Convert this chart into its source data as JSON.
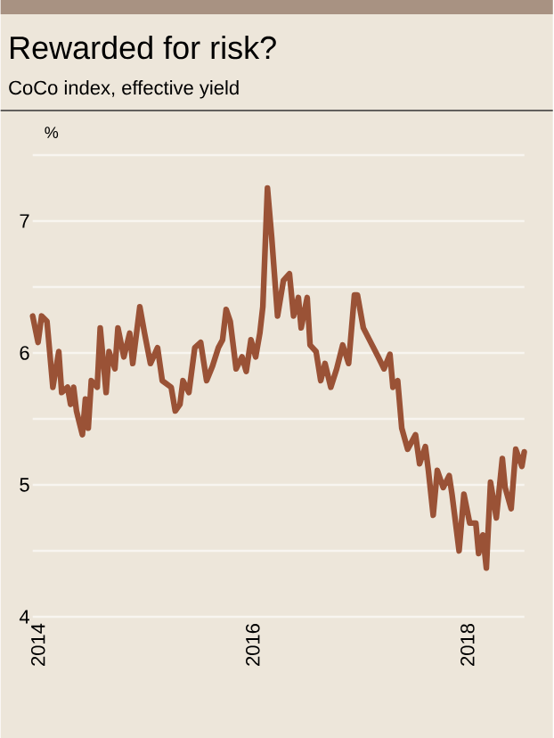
{
  "chart_data": {
    "type": "line",
    "title": "Rewarded for risk?",
    "subtitle": "CoCo index, effective yield",
    "ylabel": "%",
    "xlim": [
      2013.95,
      2018.53
    ],
    "xticks": [
      2014,
      2016,
      2018
    ],
    "ylim": [
      4,
      7.5
    ],
    "yticks": [
      4,
      {
        "value": 4.5,
        "label": null
      },
      5,
      {
        "value": 5.5,
        "label": null
      },
      6,
      {
        "value": 6.5,
        "label": null
      },
      7,
      {
        "value": 7.5,
        "label": null
      }
    ],
    "grid": "y",
    "series": [
      {
        "color": "#9a5236",
        "x": [
          2013.95,
          2014.0,
          2014.033,
          2014.083,
          2014.138,
          2014.193,
          2014.22,
          2014.275,
          2014.303,
          2014.331,
          2014.358,
          2014.413,
          2014.441,
          2014.468,
          2014.496,
          2014.551,
          2014.579,
          2014.634,
          2014.661,
          2014.716,
          2014.744,
          2014.799,
          2014.854,
          2014.882,
          2014.948,
          2014.992,
          2015.047,
          2015.113,
          2015.157,
          2015.24,
          2015.278,
          2015.322,
          2015.35,
          2015.405,
          2015.46,
          2015.515,
          2015.57,
          2015.625,
          2015.68,
          2015.719,
          2015.752,
          2015.79,
          2015.845,
          2015.9,
          2015.939,
          2015.983,
          2016.027,
          2016.066,
          2016.094,
          2016.137,
          2016.177,
          2016.231,
          2016.286,
          2016.342,
          2016.38,
          2016.425,
          2016.451,
          2016.507,
          2016.534,
          2016.59,
          2016.633,
          2016.673,
          2016.727,
          2016.782,
          2016.838,
          2016.893,
          2016.947,
          2016.975,
          2017.03,
          2017.112,
          2017.169,
          2017.223,
          2017.278,
          2017.306,
          2017.35,
          2017.388,
          2017.443,
          2017.516,
          2017.554,
          2017.608,
          2017.636,
          2017.681,
          2017.719,
          2017.774,
          2017.83,
          2017.856,
          2017.922,
          2017.967,
          2018.021,
          2018.078,
          2018.104,
          2018.143,
          2018.176,
          2018.215,
          2018.269,
          2018.325,
          2018.351,
          2018.407,
          2018.45,
          2018.507,
          2018.529
        ],
        "values": [
          6.28,
          6.08,
          6.28,
          6.24,
          5.74,
          6.01,
          5.7,
          5.74,
          5.61,
          5.74,
          5.56,
          5.38,
          5.65,
          5.43,
          5.79,
          5.74,
          6.19,
          5.7,
          6.01,
          5.88,
          6.19,
          5.97,
          6.15,
          5.92,
          6.35,
          6.15,
          5.92,
          6.04,
          5.79,
          5.74,
          5.56,
          5.61,
          5.79,
          5.7,
          6.04,
          6.08,
          5.79,
          5.9,
          6.04,
          6.1,
          6.33,
          6.24,
          5.88,
          5.97,
          5.86,
          6.1,
          5.97,
          6.15,
          6.35,
          7.25,
          6.87,
          6.28,
          6.55,
          6.6,
          6.28,
          6.42,
          6.19,
          6.42,
          6.06,
          6.01,
          5.79,
          5.92,
          5.74,
          5.88,
          6.06,
          5.92,
          6.44,
          6.44,
          6.19,
          6.06,
          5.97,
          5.88,
          5.99,
          5.74,
          5.79,
          5.43,
          5.27,
          5.38,
          5.16,
          5.29,
          5.11,
          4.77,
          5.11,
          4.98,
          5.07,
          4.93,
          4.5,
          4.93,
          4.71,
          4.71,
          4.48,
          4.62,
          4.37,
          5.02,
          4.75,
          5.2,
          4.98,
          4.82,
          5.27,
          5.14,
          5.25
        ]
      }
    ]
  }
}
